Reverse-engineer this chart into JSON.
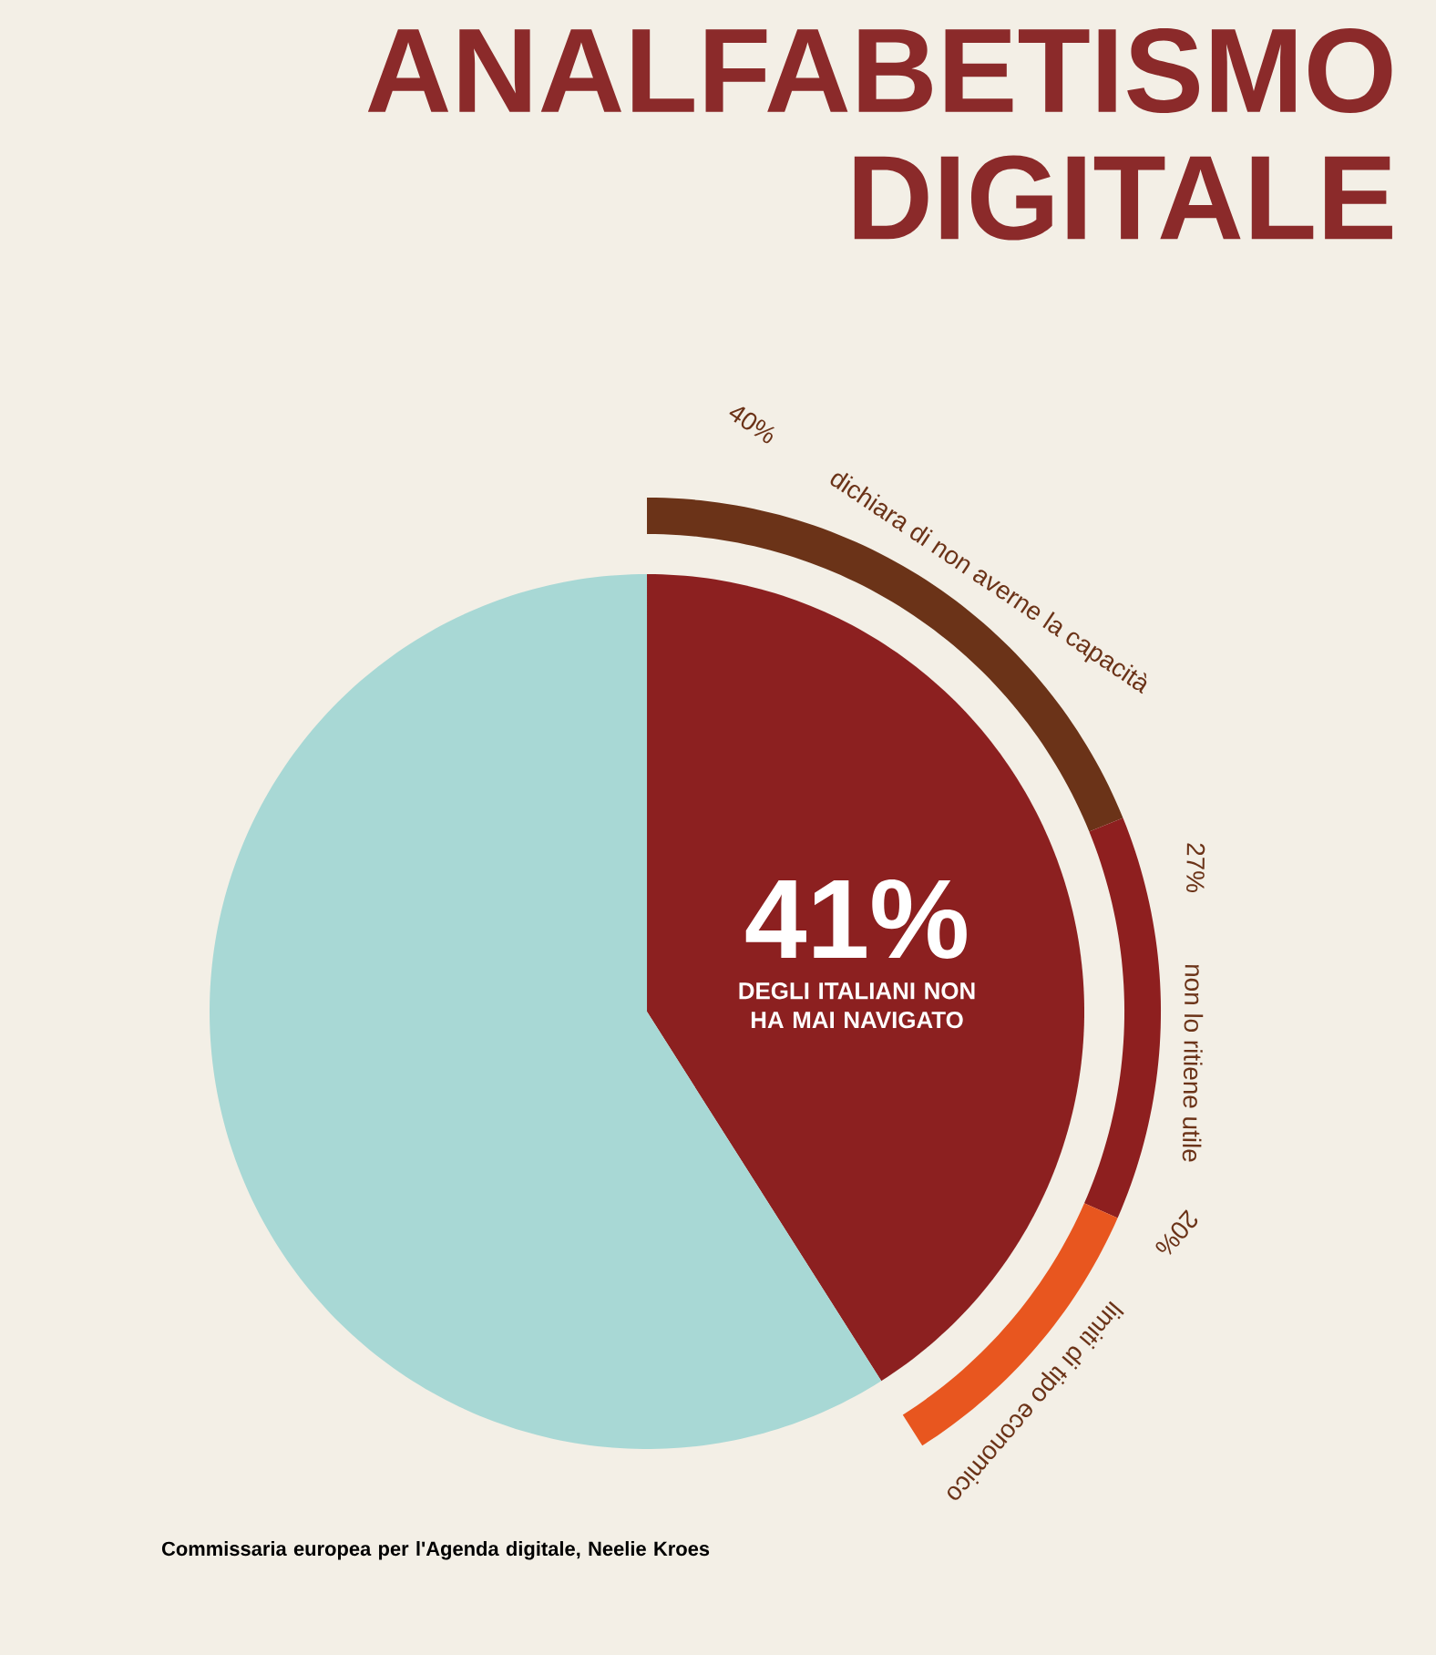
{
  "chart_data": [
    {
      "type": "pie",
      "title": "ANALFABETISMO DIGITALE",
      "categories": [
        "DEGLI ITALIANI NON HA MAI NAVIGATO",
        null
      ],
      "values": [
        41,
        59
      ],
      "colors": [
        "#8c2020",
        "#a8d8d5"
      ],
      "value_labels": [
        "41%",
        null
      ],
      "annotations": [
        "Commissaria europea per l'Agenda digitale, Neelie Kroes"
      ]
    },
    {
      "type": "donut",
      "categories": [
        "dichiara di non averne la capacità",
        "non lo ritiene utile",
        "limiti di tipo economico"
      ],
      "values": [
        40,
        27,
        20
      ],
      "value_labels": [
        "40%",
        "27%",
        "20%"
      ],
      "colors": [
        "#6b3318",
        "#8e1f1f",
        "#e8561f"
      ]
    }
  ]
}
